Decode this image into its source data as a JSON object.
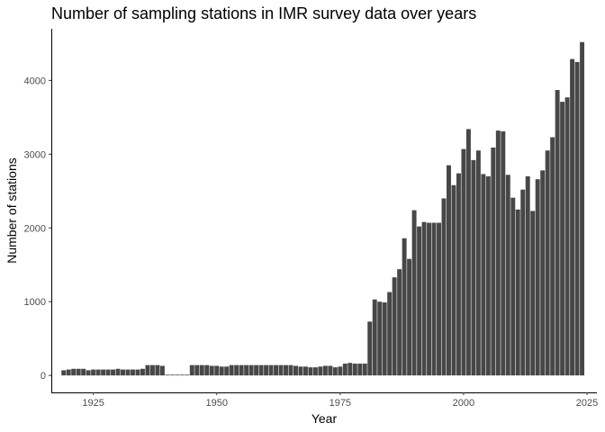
{
  "chart_data": {
    "type": "bar",
    "title": "Number of sampling stations in IMR survey data over years",
    "xlabel": "Year",
    "ylabel": "Number of stations",
    "xlim": [
      1916.5,
      2027
    ],
    "ylim": [
      -230,
      4700
    ],
    "xticks": [
      1925,
      1950,
      1975,
      2000,
      2025
    ],
    "yticks": [
      0,
      1000,
      2000,
      3000,
      4000
    ],
    "grid": false,
    "legend": "none",
    "bar_color": "#474747",
    "x": [
      1919,
      1920,
      1921,
      1922,
      1923,
      1924,
      1925,
      1926,
      1927,
      1928,
      1929,
      1930,
      1931,
      1932,
      1933,
      1934,
      1935,
      1936,
      1937,
      1938,
      1939,
      1940,
      1941,
      1942,
      1943,
      1944,
      1945,
      1946,
      1947,
      1948,
      1949,
      1950,
      1951,
      1952,
      1953,
      1954,
      1955,
      1956,
      1957,
      1958,
      1959,
      1960,
      1961,
      1962,
      1963,
      1964,
      1965,
      1966,
      1967,
      1968,
      1969,
      1970,
      1971,
      1972,
      1973,
      1974,
      1975,
      1976,
      1977,
      1978,
      1979,
      1980,
      1981,
      1982,
      1983,
      1984,
      1985,
      1986,
      1987,
      1988,
      1989,
      1990,
      1991,
      1992,
      1993,
      1994,
      1995,
      1996,
      1997,
      1998,
      1999,
      2000,
      2001,
      2002,
      2003,
      2004,
      2005,
      2006,
      2007,
      2008,
      2009,
      2010,
      2011,
      2012,
      2013,
      2014,
      2015,
      2016,
      2017,
      2018,
      2019,
      2020,
      2021,
      2022,
      2023,
      2024
    ],
    "values": [
      70,
      80,
      90,
      90,
      90,
      70,
      80,
      80,
      80,
      80,
      80,
      90,
      80,
      80,
      80,
      80,
      90,
      140,
      140,
      140,
      130,
      10,
      10,
      10,
      10,
      10,
      140,
      140,
      140,
      140,
      130,
      130,
      120,
      120,
      140,
      140,
      140,
      140,
      140,
      140,
      140,
      140,
      140,
      140,
      140,
      140,
      140,
      130,
      120,
      120,
      110,
      110,
      120,
      130,
      130,
      110,
      120,
      160,
      170,
      160,
      160,
      160,
      730,
      1030,
      1000,
      990,
      1130,
      1330,
      1440,
      1860,
      1580,
      2240,
      2020,
      2080,
      2070,
      2070,
      2070,
      2400,
      2850,
      2580,
      2740,
      3070,
      3340,
      2920,
      3050,
      2730,
      2700,
      3090,
      3320,
      3310,
      2720,
      2410,
      2250,
      2520,
      2700,
      2230,
      2660,
      2780,
      3050,
      3230,
      3870,
      3710,
      3770,
      4290,
      4250,
      4520
    ]
  }
}
